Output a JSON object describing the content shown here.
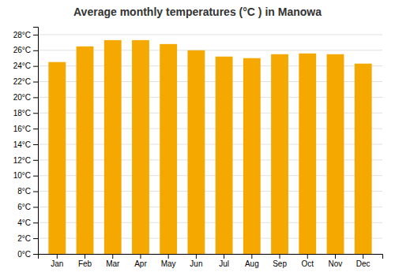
{
  "chart_data": {
    "type": "bar",
    "title": "Average monthly temperatures (°C ) in Manowa",
    "categories": [
      "Jan",
      "Feb",
      "Mar",
      "Apr",
      "May",
      "Jun",
      "Jul",
      "Aug",
      "Sep",
      "Oct",
      "Nov",
      "Dec"
    ],
    "values": [
      24.5,
      26.5,
      27.3,
      27.3,
      26.8,
      26.0,
      25.2,
      25.0,
      25.5,
      25.6,
      25.5,
      24.3
    ],
    "color": "#F5A800",
    "ylim": [
      0,
      29
    ],
    "yticks": [
      {
        "value": 0,
        "label": "0°C"
      },
      {
        "value": 2,
        "label": "2°C"
      },
      {
        "value": 4,
        "label": "4°C"
      },
      {
        "value": 6,
        "label": "6°C"
      },
      {
        "value": 8,
        "label": "8°C"
      },
      {
        "value": 10,
        "label": "10°C"
      },
      {
        "value": 12,
        "label": "12°C"
      },
      {
        "value": 14,
        "label": "14°C"
      },
      {
        "value": 16,
        "label": "16°C"
      },
      {
        "value": 18,
        "label": "18°C"
      },
      {
        "value": 20,
        "label": "20°C"
      },
      {
        "value": 22,
        "label": "22°C"
      },
      {
        "value": 24,
        "label": "24°C"
      },
      {
        "value": 26,
        "label": "26°C"
      },
      {
        "value": 28,
        "label": "28°C"
      }
    ],
    "grid": true
  }
}
